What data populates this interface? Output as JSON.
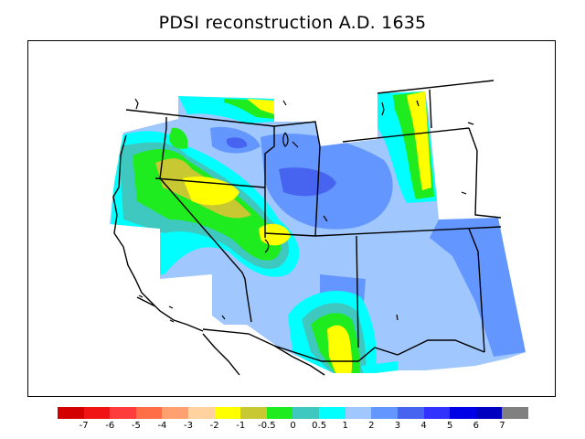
{
  "title": "PDSI reconstruction A.D. 1635",
  "colors": {
    "-7": "#d40000",
    "-6": "#f01414",
    "-5": "#ff3c3c",
    "-4": "#ff6e46",
    "-3": "#ffa070",
    "-2": "#ffd2a0",
    "-1": "#ffff00",
    "-0.5": "#c8c832",
    "0": "#1eec1e",
    "0.5": "#3ec8c0",
    "1": "#00ffff",
    "2": "#a0c8ff",
    "3": "#6496ff",
    "4": "#4664f0",
    "5": "#3232ff",
    "6": "#0000e6",
    "7": "#0000c0",
    "over": "#808080"
  },
  "legend": {
    "swatches": [
      "#d40000",
      "#f01414",
      "#ff3c3c",
      "#ff6e46",
      "#ffa070",
      "#ffd2a0",
      "#ffff00",
      "#c8c832",
      "#1eec1e",
      "#3ec8c0",
      "#00ffff",
      "#a0c8ff",
      "#6496ff",
      "#4664f0",
      "#3232ff",
      "#0000e6",
      "#0000c0",
      "#808080"
    ],
    "ticks": [
      "-7",
      "-6",
      "-5",
      "-4",
      "-3",
      "-2",
      "-1",
      "-0.5",
      "0",
      "0.5",
      "1",
      "2",
      "3",
      "4",
      "5",
      "6",
      "7"
    ]
  }
}
